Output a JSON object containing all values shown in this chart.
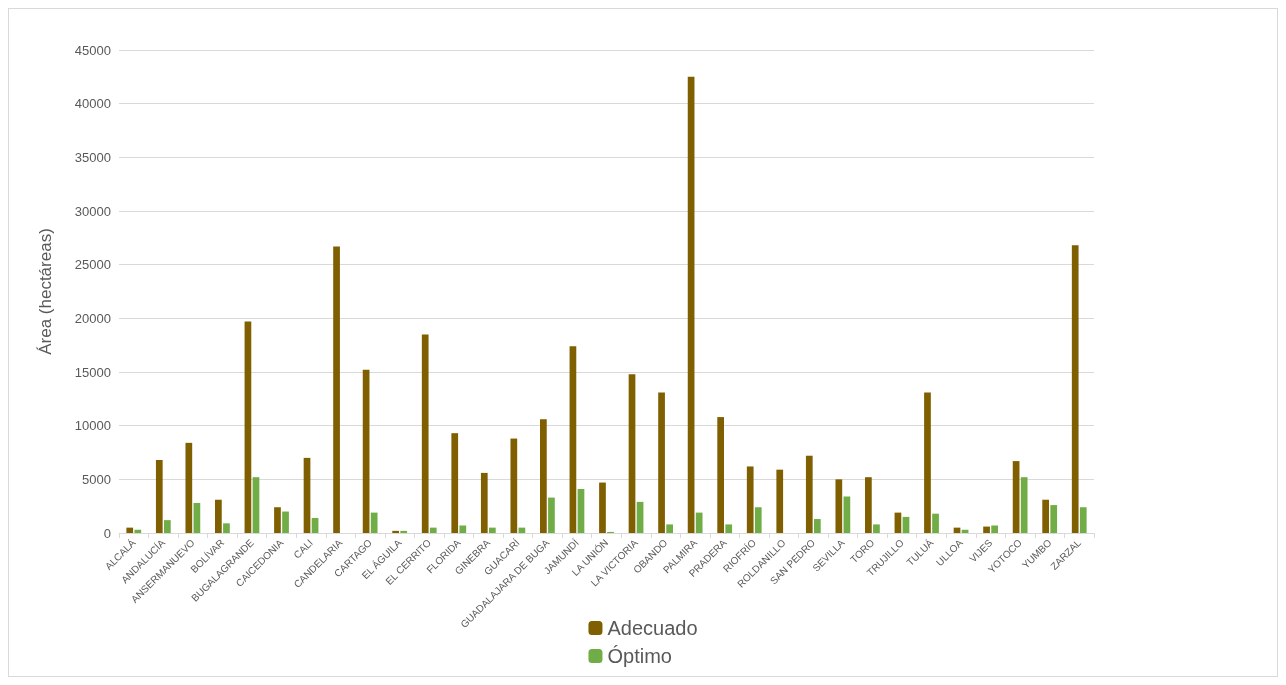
{
  "chart_data": {
    "type": "bar",
    "ylabel": "Área (hectáreas)",
    "categories": [
      "ALCALÁ",
      "ANDALUCÍA",
      "ANSERMANUEVO",
      "BOLÍVAR",
      "BUGALAGRANDE",
      "CAICEDONIA",
      "CALI",
      "CANDELARIA",
      "CARTAGO",
      "EL ÁGUILA",
      "EL CERRITO",
      "FLORIDA",
      "GINEBRA",
      "GUACARÍ",
      "GUADALAJARA DE BUGA",
      "JAMUNDÍ",
      "LA UNIÓN",
      "LA VICTORIA",
      "OBANDO",
      "PALMIRA",
      "PRADERA",
      "RIOFRÍO",
      "ROLDANILLO",
      "SAN PEDRO",
      "SEVILLA",
      "TORO",
      "TRUJILLO",
      "TULUÁ",
      "ULLOA",
      "VIJES",
      "YOTOCO",
      "YUMBO",
      "ZARZAL"
    ],
    "series": [
      {
        "name": "Adecuado",
        "color": "#7f5f00",
        "values": [
          500,
          6800,
          8400,
          3100,
          19700,
          2400,
          7000,
          26700,
          15200,
          200,
          18500,
          9300,
          5600,
          8800,
          10600,
          17400,
          4700,
          14800,
          13100,
          42500,
          10800,
          6200,
          5900,
          7200,
          5000,
          5200,
          1900,
          13100,
          500,
          600,
          6700,
          3100,
          26800
        ]
      },
      {
        "name": "Óptimo",
        "color": "#70ad47",
        "values": [
          300,
          1200,
          2800,
          900,
          5200,
          2000,
          1400,
          0,
          1900,
          200,
          500,
          700,
          500,
          500,
          3300,
          4100,
          100,
          2900,
          800,
          1900,
          800,
          2400,
          0,
          1300,
          3400,
          800,
          1500,
          1800,
          300,
          700,
          5200,
          2600,
          2400
        ]
      }
    ],
    "ylim": [
      0,
      45000
    ],
    "yticks": [
      0,
      5000,
      10000,
      15000,
      20000,
      25000,
      30000,
      35000,
      40000,
      45000
    ],
    "grid": "y",
    "legend": "bottom"
  }
}
